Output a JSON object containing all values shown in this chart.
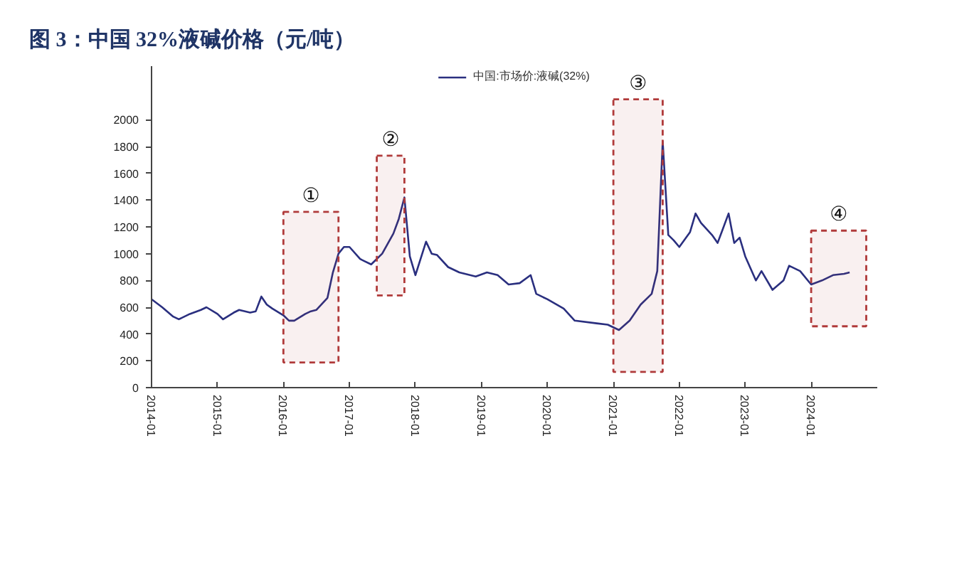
{
  "chart_data": {
    "type": "line",
    "title": "图 3：中国 32%液碱价格（元/吨）",
    "x": [
      "2014-01",
      "2014-03",
      "2014-05",
      "2014-06",
      "2014-08",
      "2014-10",
      "2014-11",
      "2015-01",
      "2015-02",
      "2015-04",
      "2015-05",
      "2015-07",
      "2015-08",
      "2015-09",
      "2015-10",
      "2015-11",
      "2016-01",
      "2016-02",
      "2016-03",
      "2016-05",
      "2016-06",
      "2016-07",
      "2016-09",
      "2016-10",
      "2016-11",
      "2016-12",
      "2017-01",
      "2017-03",
      "2017-05",
      "2017-07",
      "2017-09",
      "2017-10",
      "2017-11",
      "2017-12",
      "2018-01",
      "2018-03",
      "2018-04",
      "2018-05",
      "2018-07",
      "2018-09",
      "2018-12",
      "2019-02",
      "2019-04",
      "2019-06",
      "2019-08",
      "2019-10",
      "2019-11",
      "2020-01",
      "2020-04",
      "2020-06",
      "2020-10",
      "2020-12",
      "2021-02",
      "2021-04",
      "2021-06",
      "2021-08",
      "2021-09",
      "2021-10",
      "2021-11",
      "2021-12",
      "2022-01",
      "2022-03",
      "2022-04",
      "2022-05",
      "2022-07",
      "2022-08",
      "2022-10",
      "2022-11",
      "2022-12",
      "2023-01",
      "2023-03",
      "2023-04",
      "2023-06",
      "2023-08",
      "2023-09",
      "2023-11",
      "2024-01",
      "2024-03",
      "2024-05",
      "2024-07",
      "2024-08"
    ],
    "series": [
      {
        "name": "中国:市场价:液碱(32%)",
        "color": "#2a2f7f",
        "values": [
          660,
          600,
          530,
          510,
          550,
          580,
          600,
          550,
          510,
          560,
          580,
          560,
          570,
          680,
          620,
          590,
          540,
          500,
          500,
          550,
          570,
          580,
          670,
          860,
          1000,
          1050,
          1050,
          960,
          920,
          1000,
          1150,
          1260,
          1420,
          980,
          840,
          1090,
          1000,
          990,
          900,
          860,
          830,
          860,
          840,
          770,
          780,
          840,
          700,
          660,
          590,
          500,
          480,
          470,
          430,
          500,
          620,
          700,
          870,
          1840,
          1140,
          1100,
          1050,
          1160,
          1300,
          1230,
          1140,
          1080,
          1300,
          1080,
          1120,
          980,
          800,
          870,
          730,
          800,
          910,
          870,
          770,
          800,
          840,
          850,
          860
        ]
      }
    ],
    "xlim": [
      "2014-01",
      "2025-01"
    ],
    "xticks": [
      "2014-01",
      "2015-01",
      "2016-01",
      "2017-01",
      "2018-01",
      "2019-01",
      "2020-01",
      "2021-01",
      "2022-01",
      "2023-01",
      "2024-01"
    ],
    "ylim": [
      0,
      2400
    ],
    "yticks": [
      0,
      200,
      400,
      600,
      800,
      1000,
      1200,
      1400,
      1600,
      1800,
      2000
    ],
    "bands": [
      {
        "axis": "x",
        "from": "2016-01",
        "to": "2016-11",
        "label": "①",
        "color": "#b03a3a"
      },
      {
        "axis": "x",
        "from": "2017-06",
        "to": "2017-11",
        "label": "②",
        "color": "#b03a3a"
      },
      {
        "axis": "x",
        "from": "2021-01",
        "to": "2021-10",
        "label": "③",
        "color": "#b03a3a"
      },
      {
        "axis": "x",
        "from": "2024-01",
        "to": "2024-11",
        "label": "④",
        "color": "#b03a3a"
      }
    ],
    "legend": "top",
    "grid": false
  }
}
